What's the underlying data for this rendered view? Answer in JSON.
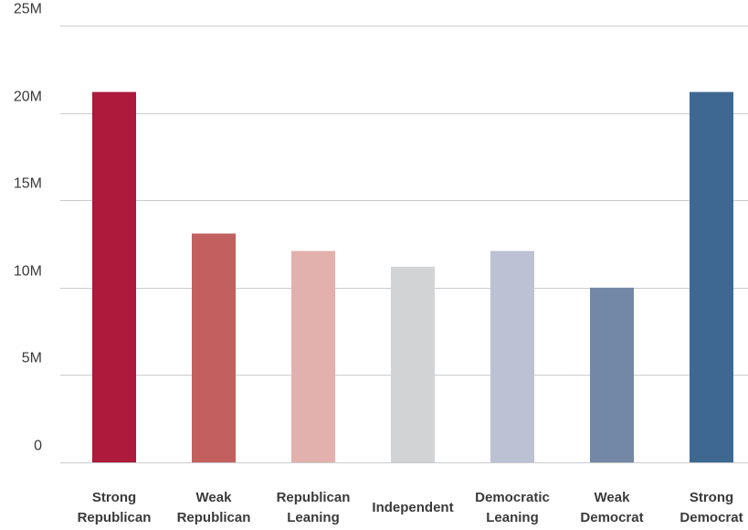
{
  "chart_data": {
    "type": "bar",
    "title": "",
    "xlabel": "",
    "ylabel": "",
    "ylim": [
      0,
      25000000
    ],
    "grid": true,
    "y_ticks": [
      {
        "value": 0,
        "label": "0"
      },
      {
        "value": 5000000,
        "label": "5M"
      },
      {
        "value": 10000000,
        "label": "10M"
      },
      {
        "value": 15000000,
        "label": "15M"
      },
      {
        "value": 20000000,
        "label": "20M"
      },
      {
        "value": 25000000,
        "label": "25M"
      }
    ],
    "categories": [
      [
        "Strong",
        "Republican"
      ],
      [
        "Weak",
        "Republican"
      ],
      [
        "Republican",
        "Leaning"
      ],
      [
        "Independent"
      ],
      [
        "Democratic",
        "Leaning"
      ],
      [
        "Weak",
        "Democrat"
      ],
      [
        "Strong",
        "Democrat"
      ]
    ],
    "values": [
      21200000,
      13100000,
      12100000,
      11200000,
      12100000,
      10000000,
      21200000
    ],
    "colors": [
      "#ad1a3b",
      "#c26060",
      "#e3b1ad",
      "#d1d3d4",
      "#bcc1d4",
      "#7288a6",
      "#3e6891"
    ]
  }
}
